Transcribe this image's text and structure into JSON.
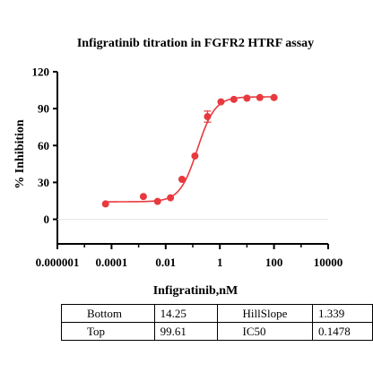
{
  "chart_data": {
    "type": "scatter",
    "title": "Infigratinib titration in FGFR2 HTRF assay",
    "xlabel": "Infigratinib,nM",
    "ylabel": "% Inhibition",
    "x_scale": "log",
    "xlim": [
      1e-06,
      10000
    ],
    "ylim": [
      -20,
      120
    ],
    "x_ticks": [
      1e-06,
      0.0001,
      0.01,
      1,
      100,
      10000
    ],
    "x_tick_labels": [
      "0.000001",
      "0.0001",
      "0.01",
      "1",
      "100",
      "10000"
    ],
    "y_ticks": [
      0,
      30,
      60,
      90,
      120
    ],
    "y_tick_labels": [
      "0",
      "30",
      "60",
      "90",
      "120"
    ],
    "color": "#e8393f",
    "series": [
      {
        "x": [
          6e-05,
          0.0015,
          0.005,
          0.015,
          0.04,
          0.12,
          0.35,
          1.1,
          3.3,
          10,
          30,
          100
        ],
        "y": [
          12.5,
          18.5,
          14.5,
          17.5,
          32.5,
          51.5,
          83.5,
          95.5,
          97.5,
          98.5,
          99.0,
          99.0
        ],
        "error": [
          0,
          0,
          0,
          0,
          0,
          0,
          4.5,
          0,
          0,
          0,
          0,
          0
        ]
      }
    ],
    "fit": {
      "model": "four-parameter logistic",
      "bottom": 14.25,
      "top": 99.61,
      "hillslope": 1.339,
      "ic50": 0.1478
    },
    "table": [
      [
        "Bottom",
        "14.25",
        "HillSlope",
        "1.339"
      ],
      [
        "Top",
        "99.61",
        "IC50",
        "0.1478"
      ]
    ]
  }
}
